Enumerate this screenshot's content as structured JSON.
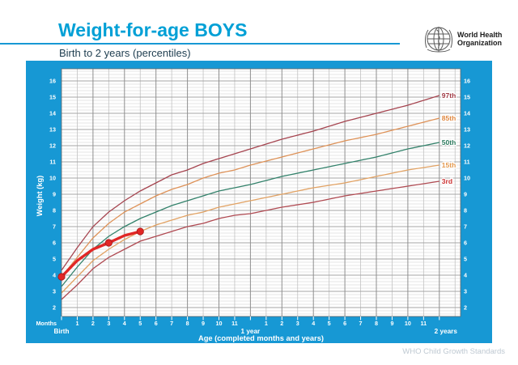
{
  "header": {
    "title": "Weight-for-age BOYS",
    "subtitle": "Birth to 2 years (percentiles)",
    "org_line1": "World Health",
    "org_line2": "Organization"
  },
  "footer": {
    "watermark": "WHO Child Growth Standards"
  },
  "colors": {
    "frame_blue": "#1798d4",
    "title_blue": "#00a0d6",
    "grid_minor_h": "#dcdcdc",
    "grid_major_h": "#a5a5a5",
    "grid_minor_v": "#c2c2c2",
    "grid_major_v": "#8f8f8f",
    "axis_text": "#ffffff"
  },
  "chart_data": {
    "type": "line",
    "title": "Weight-for-age BOYS",
    "subtitle": "Birth to 2 years (percentiles)",
    "xlabel": "Age (completed months and years)",
    "ylabel": "Weight (kg)",
    "x_unit_label": "Months",
    "xlim_months": [
      0,
      25.3
    ],
    "ylim_kg": [
      1.45,
      16.75
    ],
    "grid": {
      "h_minor_step_kg": 0.2,
      "h_major_step_kg": 1,
      "v_minor_step_mo": 1,
      "v_major_step_mo": 2
    },
    "y_ticks": [
      2,
      3,
      4,
      5,
      6,
      7,
      8,
      9,
      10,
      11,
      12,
      13,
      14,
      15,
      16
    ],
    "x_axis": {
      "birth_label": "Birth",
      "year1_label": "1 year",
      "year2_label": "2 years",
      "month_tick_labels": [
        "1",
        "2",
        "3",
        "4",
        "5",
        "6",
        "7",
        "8",
        "9",
        "10",
        "11",
        "",
        "1",
        "2",
        "3",
        "4",
        "5",
        "6",
        "7",
        "8",
        "9",
        "10",
        "11"
      ]
    },
    "months": [
      0,
      1,
      2,
      3,
      4,
      5,
      6,
      7,
      8,
      9,
      10,
      11,
      12,
      14,
      16,
      18,
      20,
      22,
      24
    ],
    "series": [
      {
        "name": "97th",
        "color": "#a64550",
        "label_color": "#a03a44",
        "values": [
          4.3,
          5.7,
          7.0,
          7.9,
          8.6,
          9.2,
          9.7,
          10.2,
          10.5,
          10.9,
          11.2,
          11.5,
          11.8,
          12.4,
          12.9,
          13.5,
          14.0,
          14.5,
          15.1
        ]
      },
      {
        "name": "85th",
        "color": "#de9258",
        "label_color": "#e08840",
        "values": [
          3.9,
          5.1,
          6.3,
          7.2,
          7.9,
          8.4,
          8.9,
          9.3,
          9.6,
          10.0,
          10.3,
          10.5,
          10.8,
          11.3,
          11.8,
          12.3,
          12.7,
          13.2,
          13.7
        ]
      },
      {
        "name": "50th",
        "color": "#33826b",
        "label_color": "#2c7a5e",
        "values": [
          3.3,
          4.5,
          5.6,
          6.4,
          7.0,
          7.5,
          7.9,
          8.3,
          8.6,
          8.9,
          9.2,
          9.4,
          9.6,
          10.1,
          10.5,
          10.9,
          11.3,
          11.8,
          12.2
        ]
      },
      {
        "name": "15th",
        "color": "#e2a263",
        "label_color": "#e49a50",
        "values": [
          2.9,
          3.9,
          4.9,
          5.6,
          6.2,
          6.7,
          7.1,
          7.4,
          7.7,
          7.9,
          8.2,
          8.4,
          8.6,
          9.0,
          9.4,
          9.7,
          10.1,
          10.5,
          10.8
        ]
      },
      {
        "name": "3rd",
        "color": "#b04a52",
        "label_color": "#cc3333",
        "values": [
          2.5,
          3.4,
          4.4,
          5.1,
          5.6,
          6.1,
          6.4,
          6.7,
          7.0,
          7.2,
          7.5,
          7.7,
          7.8,
          8.2,
          8.5,
          8.9,
          9.2,
          9.5,
          9.8
        ]
      }
    ],
    "patient": {
      "name": "plotted child weights",
      "color": "#e12726",
      "dot_stroke": "#a51616",
      "dots": [
        [
          0,
          3.9
        ],
        [
          3,
          6.0
        ],
        [
          5,
          6.7
        ]
      ],
      "line_points": [
        [
          0,
          3.9
        ],
        [
          1,
          4.9
        ],
        [
          2,
          5.6
        ],
        [
          3,
          6.0
        ],
        [
          4,
          6.45
        ],
        [
          5,
          6.7
        ]
      ]
    },
    "legend_position": "right-inside"
  }
}
